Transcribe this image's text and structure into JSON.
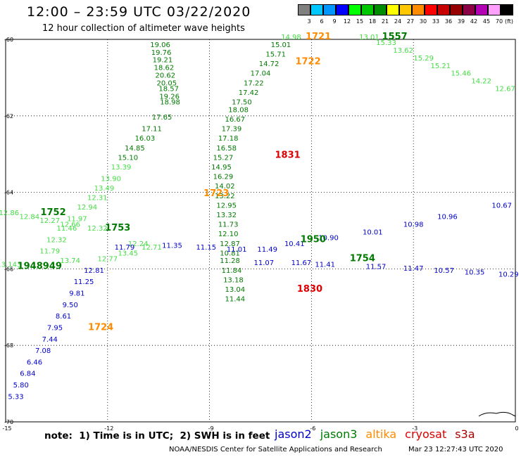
{
  "header": {
    "title": "12:00 – 23:59 UTC 03/22/2020",
    "subtitle": "12 hour collection of altimeter wave heights"
  },
  "colorbar": {
    "unit_label": "(ft)",
    "bins": [
      {
        "label": "3",
        "color": "#808080"
      },
      {
        "label": "6",
        "color": "#00c8ff"
      },
      {
        "label": "9",
        "color": "#0096ff"
      },
      {
        "label": "12",
        "color": "#0000ff"
      },
      {
        "label": "15",
        "color": "#00ff00"
      },
      {
        "label": "18",
        "color": "#00c800"
      },
      {
        "label": "21",
        "color": "#008c00"
      },
      {
        "label": "24",
        "color": "#ffff00"
      },
      {
        "label": "27",
        "color": "#ffc800"
      },
      {
        "label": "30",
        "color": "#ff8c00"
      },
      {
        "label": "33",
        "color": "#ff0000"
      },
      {
        "label": "36",
        "color": "#c80000"
      },
      {
        "label": "39",
        "color": "#960000"
      },
      {
        "label": "42",
        "color": "#8c0046"
      },
      {
        "label": "45",
        "color": "#b400b4"
      },
      {
        "label": "70",
        "color": "#ffa0ff"
      },
      {
        "label": "",
        "color": "#000000"
      }
    ]
  },
  "map": {
    "lat_labels": [
      "-60",
      "-62",
      "-64",
      "-66",
      "-68",
      "-70"
    ],
    "lon_labels": [
      "-15",
      "-12",
      "-9",
      "-6",
      "-3",
      "0"
    ],
    "colors": {
      "jason2": "#0000cc",
      "jason3": "#007a00",
      "altika": "#ff8c00",
      "cryosat": "#dd0000",
      "s3a": "#aa0000",
      "light_green": "#44dd44",
      "cyan": "#00bfff"
    },
    "pass_labels": [
      {
        "text": "1721",
        "sat": "altika",
        "lon": -5.8,
        "lat": -60.0
      },
      {
        "text": "1557",
        "sat": "jason3",
        "lon": -3.55,
        "lat": -60.0
      },
      {
        "text": "1722",
        "sat": "altika",
        "lon": -6.1,
        "lat": -60.65
      },
      {
        "text": "1831",
        "sat": "cryosat",
        "lon": -6.7,
        "lat": -63.1
      },
      {
        "text": "1723",
        "sat": "altika",
        "lon": -8.8,
        "lat": -64.1
      },
      {
        "text": "1752",
        "sat": "jason3",
        "lon": -13.6,
        "lat": -64.6
      },
      {
        "text": "1753",
        "sat": "jason3",
        "lon": -11.7,
        "lat": -65.0
      },
      {
        "text": "1950",
        "sat": "jason3",
        "lon": -5.95,
        "lat": -65.3
      },
      {
        "text": "1754",
        "sat": "jason3",
        "lon": -4.5,
        "lat": -65.8
      },
      {
        "text": "1948949",
        "sat": "jason3",
        "lon": -14.0,
        "lat": -66.0
      },
      {
        "text": "1830",
        "sat": "cryosat",
        "lon": -6.05,
        "lat": -66.6
      },
      {
        "text": "1724",
        "sat": "altika",
        "lon": -12.2,
        "lat": -67.6
      }
    ],
    "tracks": [
      {
        "name": "northward-green-pass",
        "color": "jason3",
        "points": [
          {
            "lon": -10.45,
            "lat": -60.2,
            "v": "19.06"
          },
          {
            "lon": -10.42,
            "lat": -60.4,
            "v": "19.76"
          },
          {
            "lon": -10.38,
            "lat": -60.6,
            "v": "19.21"
          },
          {
            "lon": -10.34,
            "lat": -60.8,
            "v": "18.62"
          },
          {
            "lon": -10.3,
            "lat": -61.0,
            "v": "20.62"
          },
          {
            "lon": -10.26,
            "lat": -61.2,
            "v": "20.05"
          },
          {
            "lon": -10.2,
            "lat": -61.35,
            "v": "18.57"
          },
          {
            "lon": -10.18,
            "lat": -61.55,
            "v": "19.26"
          },
          {
            "lon": -10.16,
            "lat": -61.7,
            "v": "18.98"
          },
          {
            "lon": -10.4,
            "lat": -62.1,
            "v": "17.65"
          },
          {
            "lon": -10.7,
            "lat": -62.4,
            "v": "17.11"
          },
          {
            "lon": -10.9,
            "lat": -62.65,
            "v": "16.03"
          },
          {
            "lon": -11.2,
            "lat": -62.9,
            "v": "14.85"
          },
          {
            "lon": -11.4,
            "lat": -63.15,
            "v": "15.10"
          }
        ]
      },
      {
        "name": "southward-green-pass",
        "color": "jason3",
        "points": [
          {
            "lon": -6.9,
            "lat": -60.2,
            "v": "15.01"
          },
          {
            "lon": -7.05,
            "lat": -60.45,
            "v": "15.71"
          },
          {
            "lon": -7.25,
            "lat": -60.7,
            "v": "14.72"
          },
          {
            "lon": -7.5,
            "lat": -60.95,
            "v": "17.04"
          },
          {
            "lon": -7.7,
            "lat": -61.2,
            "v": "17.22"
          },
          {
            "lon": -7.85,
            "lat": -61.45,
            "v": "17.42"
          },
          {
            "lon": -8.05,
            "lat": -61.7,
            "v": "17.50"
          },
          {
            "lon": -8.15,
            "lat": -61.9,
            "v": "18.08"
          },
          {
            "lon": -8.25,
            "lat": -62.15,
            "v": "16.67"
          },
          {
            "lon": -8.35,
            "lat": -62.4,
            "v": "17.39"
          },
          {
            "lon": -8.45,
            "lat": -62.65,
            "v": "17.18"
          },
          {
            "lon": -8.5,
            "lat": -62.9,
            "v": "16.58"
          },
          {
            "lon": -8.6,
            "lat": -63.15,
            "v": "15.27"
          },
          {
            "lon": -8.65,
            "lat": -63.4,
            "v": "14.95"
          },
          {
            "lon": -8.6,
            "lat": -63.65,
            "v": "16.29"
          },
          {
            "lon": -8.55,
            "lat": -63.9,
            "v": "14.02"
          },
          {
            "lon": -8.55,
            "lat": -64.15,
            "v": "13.22"
          },
          {
            "lon": -8.5,
            "lat": -64.4,
            "v": "12.95"
          },
          {
            "lon": -8.5,
            "lat": -64.65,
            "v": "13.32"
          },
          {
            "lon": -8.45,
            "lat": -64.9,
            "v": "11.73"
          },
          {
            "lon": -8.45,
            "lat": -65.15,
            "v": "12.10"
          },
          {
            "lon": -8.4,
            "lat": -65.4,
            "v": "12.87"
          },
          {
            "lon": -8.4,
            "lat": -65.65,
            "v": "10.81"
          },
          {
            "lon": -8.4,
            "lat": -65.85,
            "v": "11.28"
          },
          {
            "lon": -8.35,
            "lat": -66.1,
            "v": "11.84"
          },
          {
            "lon": -8.3,
            "lat": -66.35,
            "v": "13.18"
          },
          {
            "lon": -8.25,
            "lat": -66.6,
            "v": "13.04"
          },
          {
            "lon": -8.25,
            "lat": -66.85,
            "v": "11.44"
          }
        ]
      },
      {
        "name": "diagonal-light-green",
        "color": "light_green",
        "points": [
          {
            "lon": -6.6,
            "lat": -60.0,
            "v": "14.98"
          },
          {
            "lon": -11.6,
            "lat": -63.4,
            "v": "13.39"
          },
          {
            "lon": -11.9,
            "lat": -63.7,
            "v": "13.90"
          },
          {
            "lon": -12.1,
            "lat": -63.95,
            "v": "13.49"
          },
          {
            "lon": -12.3,
            "lat": -64.2,
            "v": "12.31"
          },
          {
            "lon": -12.6,
            "lat": -64.45,
            "v": "12.94"
          },
          {
            "lon": -12.9,
            "lat": -64.75,
            "v": "11.97"
          },
          {
            "lon": -13.2,
            "lat": -65.0,
            "v": "11.46"
          },
          {
            "lon": -13.5,
            "lat": -65.3,
            "v": "12.32"
          },
          {
            "lon": -13.7,
            "lat": -65.6,
            "v": "11.79"
          }
        ]
      },
      {
        "name": "lower-diagonal-blue",
        "color": "jason2",
        "points": [
          {
            "lon": -12.4,
            "lat": -66.1,
            "v": "12.81"
          },
          {
            "lon": -12.7,
            "lat": -66.4,
            "v": "11.25"
          },
          {
            "lon": -12.9,
            "lat": -66.7,
            "v": "9.81"
          },
          {
            "lon": -13.1,
            "lat": -67.0,
            "v": "9.50"
          },
          {
            "lon": -13.3,
            "lat": -67.3,
            "v": "8.61"
          },
          {
            "lon": -13.55,
            "lat": -67.6,
            "v": "7.95"
          },
          {
            "lon": -13.7,
            "lat": -67.9,
            "v": "7.44"
          },
          {
            "lon": -13.9,
            "lat": -68.2,
            "v": "7.08"
          },
          {
            "lon": -14.15,
            "lat": -68.5,
            "v": "6.46"
          },
          {
            "lon": -14.35,
            "lat": -68.8,
            "v": "6.84"
          },
          {
            "lon": -14.55,
            "lat": -69.1,
            "v": "5.80"
          },
          {
            "lon": -14.7,
            "lat": -69.4,
            "v": "5.33"
          }
        ]
      },
      {
        "name": "west-band-upper",
        "color": "light_green",
        "points": [
          {
            "lon": -14.9,
            "lat": -64.6,
            "v": "12.86"
          },
          {
            "lon": -14.3,
            "lat": -64.7,
            "v": "12.84"
          },
          {
            "lon": -13.7,
            "lat": -64.8,
            "v": "12.27"
          },
          {
            "lon": -13.1,
            "lat": -64.9,
            "v": "12.66"
          },
          {
            "lon": -12.3,
            "lat": -65.0,
            "v": "12.32"
          }
        ]
      },
      {
        "name": "west-band-lower",
        "color": "light_green",
        "points": [
          {
            "lon": -14.9,
            "lat": -65.95,
            "v": "13.143"
          },
          {
            "lon": -13.1,
            "lat": -65.85,
            "v": "13.74"
          },
          {
            "lon": -12.0,
            "lat": -65.8,
            "v": "12.77"
          },
          {
            "lon": -11.4,
            "lat": -65.65,
            "v": "13.45"
          },
          {
            "lon": -11.1,
            "lat": -65.4,
            "v": "12.24"
          },
          {
            "lon": -10.7,
            "lat": -65.5,
            "v": "12.71"
          }
        ]
      },
      {
        "name": "blue-mid-band",
        "color": "jason2",
        "points": [
          {
            "lon": -11.5,
            "lat": -65.5,
            "v": "11.79"
          },
          {
            "lon": -10.1,
            "lat": -65.45,
            "v": "11.35"
          },
          {
            "lon": -9.1,
            "lat": -65.5,
            "v": "11.15"
          },
          {
            "lon": -8.2,
            "lat": -65.55,
            "v": "11.01"
          },
          {
            "lon": -7.3,
            "lat": -65.55,
            "v": "11.49"
          },
          {
            "lon": -6.5,
            "lat": -65.4,
            "v": "10.41"
          },
          {
            "lon": -5.5,
            "lat": -65.25,
            "v": "10.90"
          },
          {
            "lon": -4.2,
            "lat": -65.1,
            "v": "10.01"
          },
          {
            "lon": -3.0,
            "lat": -64.9,
            "v": "10.98"
          },
          {
            "lon": -2.0,
            "lat": -64.7,
            "v": "10.96"
          },
          {
            "lon": -0.4,
            "lat": -64.4,
            "v": "10.67"
          }
        ]
      },
      {
        "name": "blue-lower-band",
        "color": "jason2",
        "points": [
          {
            "lon": -7.4,
            "lat": -65.9,
            "v": "11.07"
          },
          {
            "lon": -6.3,
            "lat": -65.9,
            "v": "11.67"
          },
          {
            "lon": -5.6,
            "lat": -65.95,
            "v": "11.41"
          },
          {
            "lon": -4.1,
            "lat": -66.0,
            "v": "11.57"
          },
          {
            "lon": -3.0,
            "lat": -66.05,
            "v": "11.47"
          },
          {
            "lon": -2.1,
            "lat": -66.1,
            "v": "10.57"
          },
          {
            "lon": -1.2,
            "lat": -66.15,
            "v": "10.35"
          },
          {
            "lon": -0.2,
            "lat": -66.2,
            "v": "10.29"
          }
        ]
      },
      {
        "name": "northeast-light-green",
        "color": "light_green",
        "points": [
          {
            "lon": -4.3,
            "lat": -60.0,
            "v": "13.01"
          },
          {
            "lon": -3.8,
            "lat": -60.15,
            "v": "15.33"
          },
          {
            "lon": -3.3,
            "lat": -60.35,
            "v": "13.62"
          },
          {
            "lon": -2.7,
            "lat": -60.55,
            "v": "15.29"
          },
          {
            "lon": -2.2,
            "lat": -60.75,
            "v": "15.21"
          },
          {
            "lon": -1.6,
            "lat": -60.95,
            "v": "15.46"
          },
          {
            "lon": -1.0,
            "lat": -61.15,
            "v": "14.22"
          },
          {
            "lon": -0.3,
            "lat": -61.35,
            "v": "12.67"
          }
        ]
      }
    ]
  },
  "note": "note:  1) Time is in UTC;  2) SWH is in feet",
  "legend": [
    {
      "label": "jason2",
      "color": "#0000cc"
    },
    {
      "label": "jason3",
      "color": "#007a00"
    },
    {
      "label": "altika",
      "color": "#ff8c00"
    },
    {
      "label": "cryosat",
      "color": "#dd0000"
    },
    {
      "label": "s3a",
      "color": "#aa0000"
    }
  ],
  "credit": "NOAA/NESDIS Center for Satellite Applications and Research",
  "timestamp": "Mar 23 12:27:43 UTC 2020"
}
